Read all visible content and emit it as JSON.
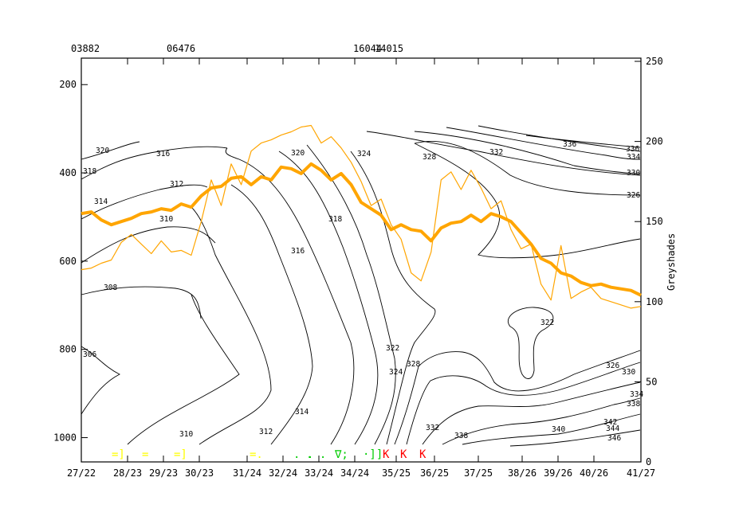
{
  "chart_data": {
    "type": "line",
    "title": "",
    "top_labels": [
      "03882",
      "06476",
      "16044",
      "14015"
    ],
    "x_tick_labels": [
      "27/22",
      "28/23",
      "29/23",
      "30/23",
      "31/24",
      "32/24",
      "33/24",
      "34/24",
      "35/25",
      "36/25",
      "37/25",
      "38/26",
      "39/26",
      "40/26",
      "41/27"
    ],
    "left_axis": {
      "label": "",
      "ticks": [
        200,
        400,
        600,
        800,
        1000
      ],
      "range": [
        1055,
        140
      ],
      "inverted": true
    },
    "right_axis": {
      "label": "Greyshades",
      "ticks": [
        0,
        50,
        100,
        150,
        200,
        250
      ],
      "range": [
        0,
        252
      ]
    },
    "contour_labels": [
      "320",
      "318",
      "316",
      "314",
      "312",
      "310",
      "308",
      "306",
      "310",
      "312",
      "314",
      "316",
      "318",
      "320",
      "322",
      "324",
      "326",
      "328",
      "330",
      "332",
      "334",
      "336",
      "338",
      "340",
      "342",
      "344",
      "346",
      "322",
      "324",
      "326",
      "328",
      "330",
      "332",
      "334",
      "336",
      "338"
    ],
    "series": [
      {
        "name": "thick orange",
        "color": "#FFA500",
        "axis": "right",
        "values": [
          155,
          156,
          151,
          148,
          150,
          152,
          155,
          156,
          158,
          157,
          161,
          159,
          166,
          171,
          172,
          177,
          178,
          173,
          178,
          176,
          184,
          183,
          180,
          186,
          182,
          176,
          180,
          173,
          162,
          158,
          154,
          145,
          148,
          145,
          144,
          138,
          146,
          149,
          150,
          154,
          150,
          155,
          153,
          150,
          143,
          136,
          127,
          124,
          118,
          116,
          112,
          110,
          111,
          109,
          108,
          107,
          104
        ]
      },
      {
        "name": "thin orange",
        "color": "#FFA500",
        "axis": "right",
        "values": [
          120,
          121,
          124,
          126,
          137,
          142,
          136,
          130,
          138,
          131,
          132,
          129,
          150,
          176,
          160,
          186,
          173,
          194,
          199,
          201,
          204,
          206,
          209,
          210,
          199,
          203,
          196,
          187,
          175,
          160,
          164,
          148,
          139,
          118,
          113,
          131,
          176,
          181,
          170,
          182,
          171,
          158,
          163,
          145,
          133,
          136,
          111,
          101,
          135,
          102,
          106,
          109,
          102,
          100,
          98,
          96,
          97
        ]
      }
    ],
    "weather_symbols": [
      "=]",
      "=",
      "=]",
      "=.",
      ". .",
      ". .",
      "∇;",
      "·]]",
      "K",
      "K",
      "K"
    ]
  }
}
